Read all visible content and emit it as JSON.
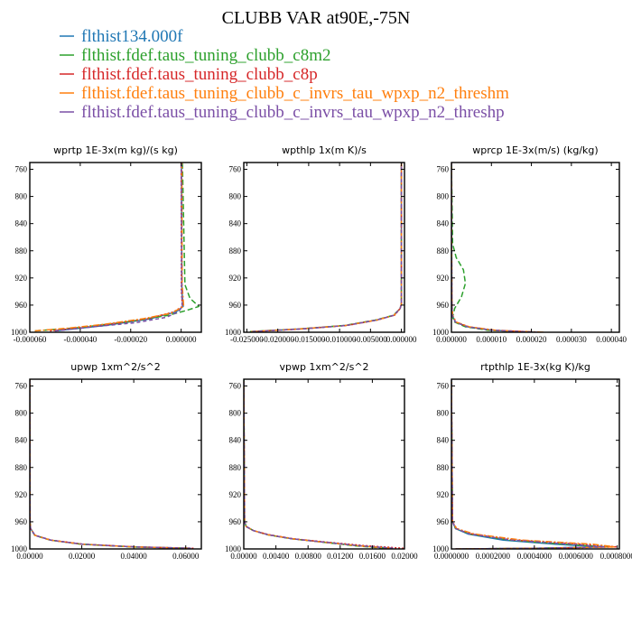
{
  "figure": {
    "title": "CLUBB VAR at90E,-75N"
  },
  "legend": [
    {
      "name": "flthist134.000f",
      "color": "#1f77b4"
    },
    {
      "name": "flthist.fdef.taus_tuning_clubb_c8m2",
      "color": "#2ca02c"
    },
    {
      "name": "flthist.fdef.taus_tuning_clubb_c8p",
      "color": "#d62728"
    },
    {
      "name": "flthist.fdef.taus_tuning_clubb_c_invrs_tau_wpxp_n2_threshm",
      "color": "#ff7f0e"
    },
    {
      "name": "flthist.fdef.taus_tuning_clubb_c_invrs_tau_wpxp_n2_threshp",
      "color": "#7b4fa6"
    }
  ],
  "chart_data": [
    {
      "type": "line",
      "title": "wprtp  1E-3x(m kg)/(s kg)",
      "xlim": [
        -6e-05,
        8e-06
      ],
      "ylim": [
        1000,
        750
      ],
      "xticks": [
        -6e-05,
        -4e-05,
        -2e-05,
        0
      ],
      "xtick_labels": [
        "-0.000060",
        "-0.000040",
        "-0.000020",
        "0.000000"
      ],
      "yticks": [
        760,
        800,
        840,
        880,
        920,
        960,
        1000
      ],
      "series": [
        {
          "color": "#1f77b4",
          "x": [
            -5e-05,
            -3e-05,
            -1.2e-05,
            -2e-06,
            8e-07,
            3e-07,
            2e-07,
            1e-07
          ],
          "y": [
            998,
            990,
            980,
            970,
            962,
            940,
            850,
            750
          ]
        },
        {
          "color": "#2ca02c",
          "x": [
            -5.8e-05,
            -4e-05,
            -2e-05,
            -5e-06,
            2e-06,
            7e-06,
            3.5e-06,
            1.5e-06,
            5e-07
          ],
          "y": [
            998,
            993,
            984,
            975,
            968,
            962,
            950,
            930,
            750
          ]
        },
        {
          "color": "#d62728",
          "x": [
            -5.2e-05,
            -3.2e-05,
            -1.3e-05,
            -3e-06,
            5e-07,
            1e-07,
            0
          ],
          "y": [
            998,
            990,
            980,
            970,
            962,
            940,
            750
          ]
        },
        {
          "color": "#ff7f0e",
          "x": [
            -5.8e-05,
            -4.5e-05,
            -3e-05,
            -1.5e-05,
            -4e-06,
            1e-06,
            4e-07,
            3e-07
          ],
          "y": [
            998,
            994,
            988,
            980,
            972,
            962,
            930,
            750
          ]
        },
        {
          "color": "#7b4fa6",
          "x": [
            -5e-05,
            -3.5e-05,
            -1.8e-05,
            -6e-06,
            -1e-06,
            4e-07,
            2e-07,
            1e-07
          ],
          "y": [
            998,
            992,
            986,
            978,
            970,
            962,
            930,
            750
          ]
        }
      ]
    },
    {
      "type": "line",
      "title": "wpthlp  1x(m K)/s",
      "xlim": [
        -0.0255,
        0.0005
      ],
      "ylim": [
        1000,
        750
      ],
      "xticks": [
        -0.025,
        -0.02,
        -0.015,
        -0.01,
        -0.005,
        0
      ],
      "xtick_labels": [
        "-0.025000",
        "-0.020000",
        "-0.015000",
        "-0.010000",
        "-0.005000",
        "0.000000"
      ],
      "yticks": [
        760,
        800,
        840,
        880,
        920,
        960,
        1000
      ],
      "series": [
        {
          "color": "#1f77b4",
          "x": [
            -0.024,
            -0.016,
            -0.009,
            -0.004,
            -0.0012,
            -0.0002,
            0,
            0
          ],
          "y": [
            999,
            995,
            990,
            982,
            975,
            965,
            958,
            750
          ]
        },
        {
          "color": "#2ca02c",
          "x": [
            -0.0245,
            -0.0165,
            -0.0092,
            -0.0042,
            -0.0013,
            -0.0002,
            0,
            0
          ],
          "y": [
            999,
            995,
            990,
            982,
            975,
            965,
            958,
            750
          ]
        },
        {
          "color": "#d62728",
          "x": [
            -0.0238,
            -0.0158,
            -0.0088,
            -0.0039,
            -0.0011,
            -0.0002,
            0,
            0
          ],
          "y": [
            999,
            995,
            990,
            982,
            975,
            965,
            958,
            750
          ]
        },
        {
          "color": "#ff7f0e",
          "x": [
            -0.0243,
            -0.0162,
            -0.009,
            -0.004,
            -0.0012,
            -0.0002,
            0,
            0
          ],
          "y": [
            999,
            995,
            990,
            982,
            975,
            965,
            958,
            750
          ]
        },
        {
          "color": "#7b4fa6",
          "x": [
            -0.0241,
            -0.016,
            -0.0089,
            -0.004,
            -0.0012,
            -0.0002,
            0,
            0
          ],
          "y": [
            999,
            995,
            990,
            982,
            975,
            965,
            958,
            750
          ]
        }
      ]
    },
    {
      "type": "line",
      "title": "wprcp  1E-3x(m/s) (kg/kg)",
      "xlim": [
        0,
        4.2e-05
      ],
      "ylim": [
        1000,
        750
      ],
      "xticks": [
        0,
        1e-05,
        2e-05,
        3e-05,
        4e-05
      ],
      "xtick_labels": [
        "0.000000",
        "0.000010",
        "0.000020",
        "0.000030",
        "0.000040"
      ],
      "yticks": [
        760,
        800,
        840,
        880,
        920,
        960,
        1000
      ],
      "series": [
        {
          "color": "#1f77b4",
          "x": [
            2.1e-05,
            1e-05,
            4e-06,
            1e-06,
            2e-07,
            1e-07,
            0
          ],
          "y": [
            1000,
            997,
            992,
            985,
            975,
            950,
            750
          ]
        },
        {
          "color": "#2ca02c",
          "x": [
            2e-05,
            9e-06,
            3.5e-06,
            8e-07,
            3e-07,
            8e-07,
            2.5e-06,
            3.5e-06,
            3e-06,
            1.2e-06,
            3e-07,
            0
          ],
          "y": [
            1000,
            997,
            992,
            985,
            978,
            965,
            948,
            928,
            908,
            890,
            870,
            750
          ]
        },
        {
          "color": "#d62728",
          "x": [
            2.2e-05,
            1.05e-05,
            4.2e-06,
            1.1e-06,
            2e-07,
            1e-07,
            0
          ],
          "y": [
            1000,
            997,
            992,
            985,
            975,
            950,
            750
          ]
        },
        {
          "color": "#ff7f0e",
          "x": [
            2.3e-05,
            1.1e-05,
            4.5e-06,
            1.2e-06,
            3e-07,
            1e-07,
            0
          ],
          "y": [
            1000,
            997,
            992,
            985,
            975,
            950,
            750
          ]
        },
        {
          "color": "#7b4fa6",
          "x": [
            2.15e-05,
            1.02e-05,
            4e-06,
            1e-06,
            2e-07,
            1e-07,
            0
          ],
          "y": [
            1000,
            997,
            992,
            985,
            975,
            950,
            750
          ]
        }
      ]
    },
    {
      "type": "line",
      "title": "upwp  1xm^2/s^2",
      "xlim": [
        0,
        0.066
      ],
      "ylim": [
        1000,
        750
      ],
      "xticks": [
        0,
        0.02,
        0.04,
        0.06
      ],
      "xtick_labels": [
        "0.00000",
        "0.02000",
        "0.04000",
        "0.06000"
      ],
      "yticks": [
        760,
        800,
        840,
        880,
        920,
        960,
        1000
      ],
      "series": [
        {
          "color": "#1f77b4",
          "x": [
            0.062,
            0.04,
            0.02,
            0.008,
            0.002,
            0.0003,
            0.0001,
            0
          ],
          "y": [
            999,
            997,
            993,
            987,
            980,
            970,
            960,
            750
          ]
        },
        {
          "color": "#2ca02c",
          "x": [
            0.061,
            0.039,
            0.0195,
            0.0078,
            0.0019,
            0.0003,
            0.0001,
            0
          ],
          "y": [
            999,
            997,
            993,
            987,
            980,
            970,
            960,
            750
          ]
        },
        {
          "color": "#d62728",
          "x": [
            0.063,
            0.041,
            0.0205,
            0.0082,
            0.0021,
            0.0003,
            0.0001,
            0
          ],
          "y": [
            999,
            997,
            993,
            987,
            980,
            970,
            960,
            750
          ]
        },
        {
          "color": "#ff7f0e",
          "x": [
            0.062,
            0.04,
            0.02,
            0.008,
            0.002,
            0.0003,
            0.0001,
            0
          ],
          "y": [
            999,
            997,
            993,
            987,
            980,
            970,
            960,
            750
          ]
        },
        {
          "color": "#7b4fa6",
          "x": [
            0.062,
            0.0405,
            0.0202,
            0.0081,
            0.002,
            0.0003,
            0.0001,
            0
          ],
          "y": [
            999,
            997,
            993,
            987,
            980,
            970,
            960,
            750
          ]
        }
      ]
    },
    {
      "type": "line",
      "title": "vpwp  1xm^2/s^2",
      "xlim": [
        0,
        0.02
      ],
      "ylim": [
        1000,
        750
      ],
      "xticks": [
        0,
        0.004,
        0.008,
        0.012,
        0.016,
        0.02
      ],
      "xtick_labels": [
        "0.00000",
        "0.00400",
        "0.00800",
        "0.01200",
        "0.01600",
        "0.02000"
      ],
      "yticks": [
        760,
        800,
        840,
        880,
        920,
        960,
        1000
      ],
      "series": [
        {
          "color": "#1f77b4",
          "x": [
            0.0185,
            0.014,
            0.01,
            0.006,
            0.003,
            0.0012,
            0.0003,
            0.0001,
            0
          ],
          "y": [
            999,
            995,
            990,
            985,
            979,
            973,
            967,
            960,
            750
          ]
        },
        {
          "color": "#2ca02c",
          "x": [
            0.0175,
            0.0135,
            0.0098,
            0.0059,
            0.0029,
            0.0012,
            0.0003,
            0.0001,
            0
          ],
          "y": [
            999,
            995,
            990,
            985,
            979,
            973,
            967,
            960,
            750
          ]
        },
        {
          "color": "#d62728",
          "x": [
            0.0199,
            0.0149,
            0.0104,
            0.0062,
            0.0031,
            0.0012,
            0.0003,
            0.0001,
            0
          ],
          "y": [
            999,
            995,
            990,
            985,
            979,
            973,
            967,
            960,
            750
          ]
        },
        {
          "color": "#ff7f0e",
          "x": [
            0.0182,
            0.0139,
            0.0099,
            0.006,
            0.003,
            0.0012,
            0.0003,
            0.0001,
            0
          ],
          "y": [
            999,
            995,
            990,
            985,
            979,
            973,
            967,
            960,
            750
          ]
        },
        {
          "color": "#7b4fa6",
          "x": [
            0.0186,
            0.0141,
            0.01,
            0.006,
            0.003,
            0.0012,
            0.0003,
            0.0001,
            0
          ],
          "y": [
            999,
            995,
            990,
            985,
            979,
            973,
            967,
            960,
            750
          ]
        }
      ]
    },
    {
      "type": "line",
      "title": "rtpthlp  1E-3x(kg K)/kg",
      "xlim": [
        0,
        0.00081
      ],
      "ylim": [
        1000,
        750
      ],
      "xticks": [
        0,
        0.0002,
        0.0004,
        0.0006,
        0.0008
      ],
      "xtick_labels": [
        "0.0000000",
        "0.0002000",
        "0.0004000",
        "0.0006000",
        "0.0008000"
      ],
      "yticks": [
        760,
        800,
        840,
        880,
        920,
        960,
        1000
      ],
      "series": [
        {
          "color": "#1f77b4",
          "x": [
            2e-05,
            0.0004,
            0.00073,
            0.0005,
            0.00025,
            8e-05,
            2e-05,
            5e-06,
            0
          ],
          "y": [
            1000,
            999,
            997,
            993,
            987,
            978,
            970,
            960,
            750
          ]
        },
        {
          "color": "#2ca02c",
          "x": [
            2e-05,
            0.00042,
            0.00075,
            0.00054,
            0.00028,
            9e-05,
            2e-05,
            5e-06,
            0
          ],
          "y": [
            1000,
            999,
            997,
            993,
            987,
            978,
            970,
            960,
            750
          ]
        },
        {
          "color": "#d62728",
          "x": [
            2e-05,
            0.00045,
            0.0008,
            0.00062,
            0.00031,
            0.0001,
            2.5e-05,
            5e-06,
            0
          ],
          "y": [
            1000,
            999,
            997,
            993,
            987,
            978,
            970,
            960,
            750
          ]
        },
        {
          "color": "#ff7f0e",
          "x": [
            2e-05,
            0.00046,
            0.00079,
            0.00068,
            0.00034,
            0.00011,
            2.5e-05,
            5e-06,
            0
          ],
          "y": [
            1000,
            999,
            997,
            993,
            987,
            978,
            970,
            960,
            750
          ]
        },
        {
          "color": "#7b4fa6",
          "x": [
            2e-05,
            0.00041,
            0.00074,
            0.00058,
            0.00029,
            9e-05,
            2e-05,
            5e-06,
            0
          ],
          "y": [
            1000,
            999,
            997,
            993,
            987,
            978,
            970,
            960,
            750
          ]
        }
      ]
    }
  ]
}
